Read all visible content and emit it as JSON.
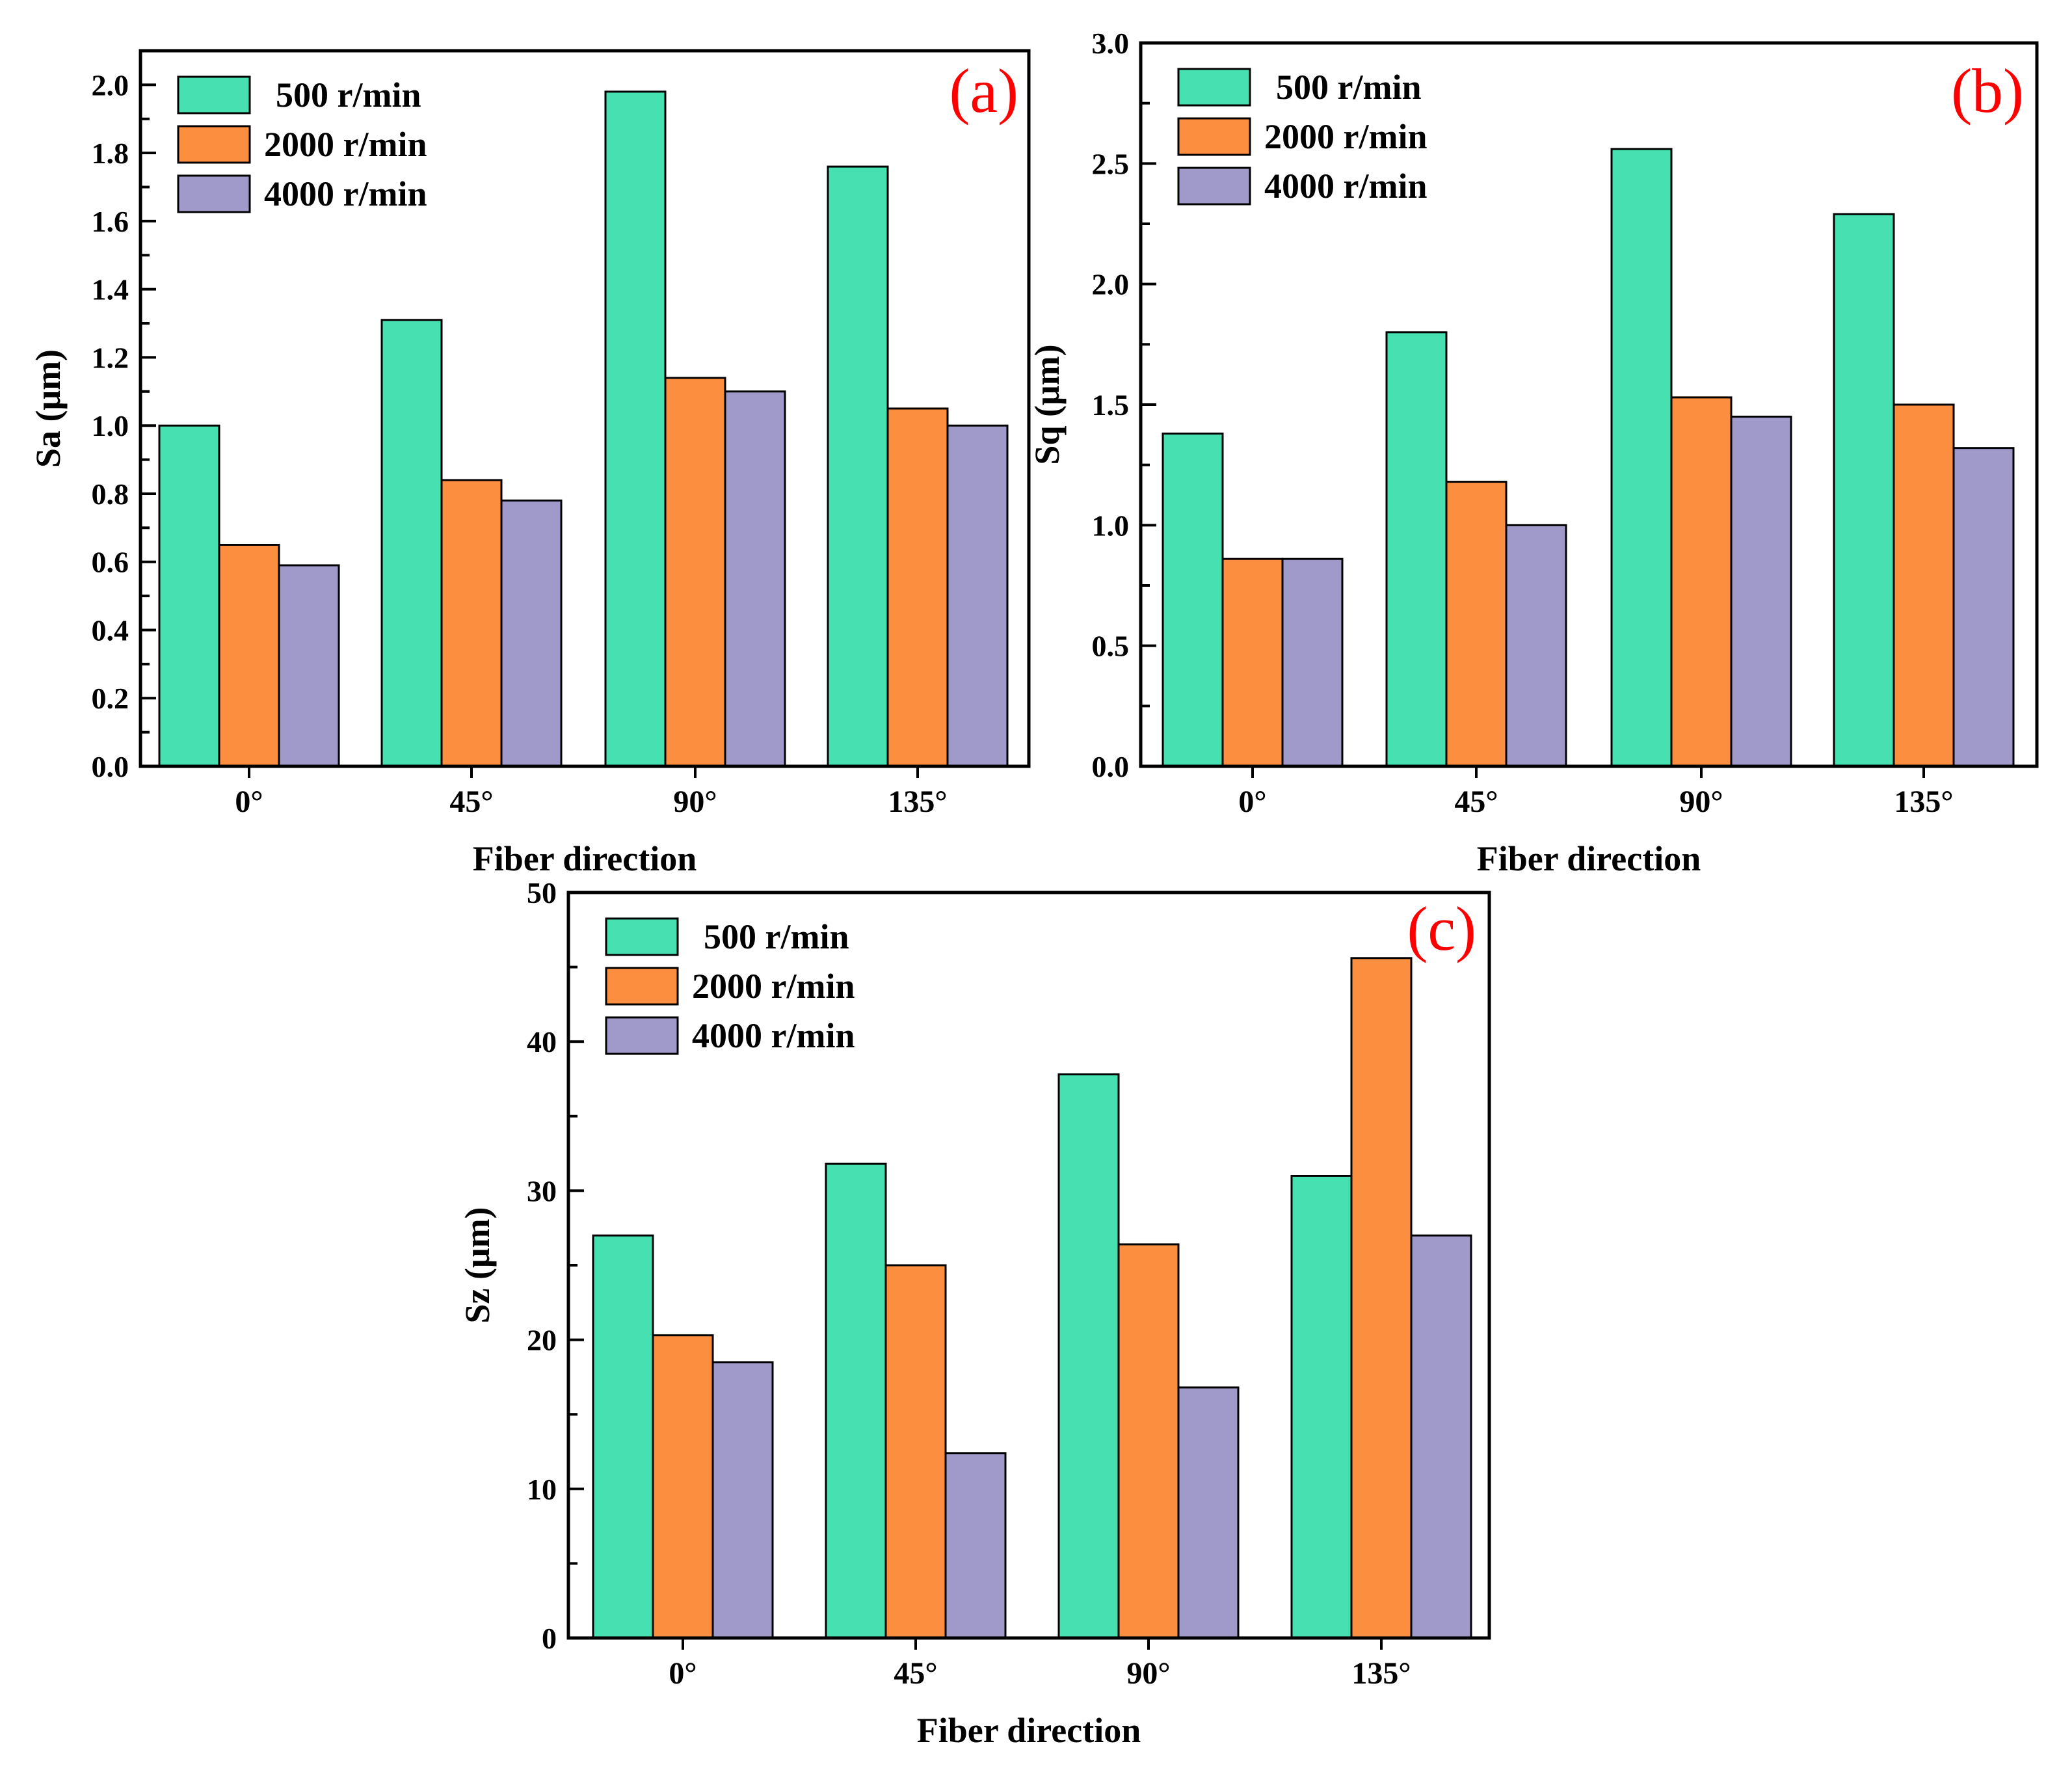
{
  "colors": {
    "500": "#47e0b1",
    "2000": "#fb8f3f",
    "4000": "#9f9aca",
    "panel_label": "#ff0000"
  },
  "chart_data": [
    {
      "type": "bar",
      "panel": "(a)",
      "title": "",
      "xlabel": "Fiber direction",
      "ylabel": "Sa (μm)",
      "categories": [
        "0°",
        "45°",
        "90°",
        "135°"
      ],
      "ylim": [
        0,
        2.1
      ],
      "yticks": [
        0.0,
        0.2,
        0.4,
        0.6,
        0.8,
        1.0,
        1.2,
        1.4,
        1.6,
        1.8,
        2.0
      ],
      "ytick_labels": [
        "0.0",
        "0.2",
        "0.4",
        "0.6",
        "0.8",
        "1.0",
        "1.2",
        "1.4",
        "1.6",
        "1.8",
        "2.0"
      ],
      "legend_position": "top-left",
      "series": [
        {
          "name": "500 r/min",
          "color_key": "500",
          "values": [
            1.0,
            1.31,
            1.98,
            1.76
          ]
        },
        {
          "name": "2000 r/min",
          "color_key": "2000",
          "values": [
            0.65,
            0.84,
            1.14,
            1.05
          ]
        },
        {
          "name": "4000 r/min",
          "color_key": "4000",
          "values": [
            0.59,
            0.78,
            1.1,
            1.0
          ]
        }
      ]
    },
    {
      "type": "bar",
      "panel": "(b)",
      "title": "",
      "xlabel": "Fiber direction",
      "ylabel": "Sq (μm)",
      "categories": [
        "0°",
        "45°",
        "90°",
        "135°"
      ],
      "ylim": [
        0,
        3.0
      ],
      "yticks": [
        0.0,
        0.5,
        1.0,
        1.5,
        2.0,
        2.5,
        3.0
      ],
      "ytick_labels": [
        "0.0",
        "0.5",
        "1.0",
        "1.5",
        "2.0",
        "2.5",
        "3.0"
      ],
      "legend_position": "top-left",
      "series": [
        {
          "name": "500 r/min",
          "color_key": "500",
          "values": [
            1.38,
            1.8,
            2.56,
            2.29
          ]
        },
        {
          "name": "2000 r/min",
          "color_key": "2000",
          "values": [
            0.86,
            1.18,
            1.53,
            1.5
          ]
        },
        {
          "name": "4000 r/min",
          "color_key": "4000",
          "values": [
            0.86,
            1.0,
            1.45,
            1.32
          ]
        }
      ]
    },
    {
      "type": "bar",
      "panel": "(c)",
      "title": "",
      "xlabel": "Fiber direction",
      "ylabel": "Sz (μm)",
      "categories": [
        "0°",
        "45°",
        "90°",
        "135°"
      ],
      "ylim": [
        0,
        50
      ],
      "yticks": [
        0,
        10,
        20,
        30,
        40,
        50
      ],
      "ytick_labels": [
        "0",
        "10",
        "20",
        "30",
        "40",
        "50"
      ],
      "legend_position": "top-left",
      "series": [
        {
          "name": "500 r/min",
          "color_key": "500",
          "values": [
            27.0,
            31.8,
            37.8,
            31.0
          ]
        },
        {
          "name": "2000 r/min",
          "color_key": "2000",
          "values": [
            20.3,
            25.0,
            26.4,
            45.6
          ]
        },
        {
          "name": "4000 r/min",
          "color_key": "4000",
          "values": [
            18.5,
            12.4,
            16.8,
            27.0
          ]
        }
      ]
    }
  ]
}
